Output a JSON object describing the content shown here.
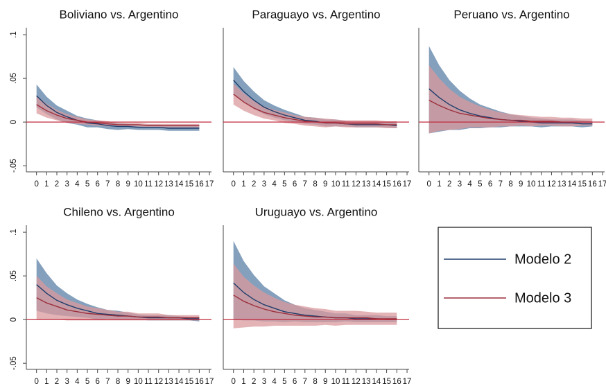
{
  "legend": [
    {
      "name": "Modelo 2",
      "color": "#1f3d6b",
      "band_color": "#6f8fb0"
    },
    {
      "name": "Modelo 3",
      "color": "#9b2f3b",
      "band_color": "#d99a9e"
    }
  ],
  "chart_data": [
    {
      "type": "line",
      "title": "Boliviano vs. Argentino",
      "x": [
        0,
        1,
        2,
        3,
        4,
        5,
        6,
        7,
        8,
        9,
        10,
        11,
        12,
        13,
        14,
        15,
        16
      ],
      "xlim": [
        -1,
        17.2
      ],
      "xticks": [
        0,
        1,
        2,
        3,
        4,
        5,
        6,
        7,
        8,
        9,
        10,
        11,
        12,
        13,
        14,
        15,
        16,
        17
      ],
      "ylim": [
        -0.057,
        0.108
      ],
      "yticks": [
        {
          "value": -0.05,
          "label": "-.05"
        },
        0,
        {
          "value": 0.05,
          "label": ".05"
        },
        {
          "value": 0.1,
          "label": ".1"
        }
      ],
      "refline": 0,
      "refline_color": "#c0283a",
      "series": [
        {
          "values": [
            0.03,
            0.019,
            0.011,
            0.006,
            0.002,
            -0.001,
            -0.002,
            -0.004,
            -0.005,
            -0.005,
            -0.006,
            -0.006,
            -0.006,
            -0.007,
            -0.007,
            -0.007,
            -0.007
          ],
          "lower": [
            0.017,
            0.009,
            0.003,
            -0.001,
            -0.003,
            -0.006,
            -0.006,
            -0.008,
            -0.009,
            -0.008,
            -0.009,
            -0.009,
            -0.009,
            -0.01,
            -0.01,
            -0.01,
            -0.01
          ],
          "upper": [
            0.043,
            0.029,
            0.019,
            0.013,
            0.007,
            0.004,
            0.002,
            0,
            -0.001,
            -0.002,
            -0.003,
            -0.003,
            -0.003,
            -0.004,
            -0.004,
            -0.004,
            -0.004
          ]
        },
        {
          "values": [
            0.02,
            0.013,
            0.008,
            0.004,
            0.002,
            0,
            -0.001,
            -0.002,
            -0.003,
            -0.003,
            -0.003,
            -0.004,
            -0.004,
            -0.004,
            -0.004,
            -0.004,
            -0.004
          ],
          "lower": [
            0.01,
            0.005,
            0.002,
            -0.001,
            -0.002,
            -0.003,
            -0.004,
            -0.005,
            -0.005,
            -0.005,
            -0.005,
            -0.006,
            -0.006,
            -0.006,
            -0.006,
            -0.006,
            -0.006
          ],
          "upper": [
            0.03,
            0.021,
            0.014,
            0.009,
            0.006,
            0.003,
            0.002,
            0.001,
            -0.001,
            -0.001,
            -0.001,
            -0.002,
            -0.002,
            -0.002,
            -0.002,
            -0.002,
            -0.002
          ]
        }
      ]
    },
    {
      "type": "line",
      "title": "Paraguayo vs. Argentino",
      "x": [
        0,
        1,
        2,
        3,
        4,
        5,
        6,
        7,
        8,
        9,
        10,
        11,
        12,
        13,
        14,
        15,
        16
      ],
      "xlim": [
        -1,
        17.2
      ],
      "xticks": [
        0,
        1,
        2,
        3,
        4,
        5,
        6,
        7,
        8,
        9,
        10,
        11,
        12,
        13,
        14,
        15,
        16,
        17
      ],
      "ylim": [
        -0.057,
        0.108
      ],
      "refline": 0,
      "refline_color": "#c0283a",
      "series": [
        {
          "values": [
            0.048,
            0.035,
            0.025,
            0.017,
            0.012,
            0.008,
            0.005,
            0.002,
            0.001,
            -0.001,
            -0.001,
            -0.002,
            -0.003,
            -0.003,
            -0.003,
            -0.003,
            -0.004
          ],
          "lower": [
            0.033,
            0.023,
            0.015,
            0.009,
            0.005,
            0.002,
            0,
            -0.002,
            -0.003,
            -0.005,
            -0.005,
            -0.005,
            -0.006,
            -0.006,
            -0.006,
            -0.006,
            -0.007
          ],
          "upper": [
            0.063,
            0.047,
            0.035,
            0.025,
            0.019,
            0.014,
            0.01,
            0.006,
            0.005,
            0.003,
            0.003,
            0.001,
            0,
            0,
            0,
            0,
            -0.001
          ]
        },
        {
          "values": [
            0.032,
            0.023,
            0.016,
            0.011,
            0.008,
            0.005,
            0.003,
            0.001,
            0,
            -0.001,
            -0.001,
            -0.002,
            -0.002,
            -0.002,
            -0.002,
            -0.003,
            -0.003
          ],
          "lower": [
            0.02,
            0.013,
            0.008,
            0.004,
            0.002,
            -0.001,
            -0.002,
            -0.004,
            -0.005,
            -0.006,
            -0.005,
            -0.006,
            -0.006,
            -0.006,
            -0.006,
            -0.007,
            -0.007
          ],
          "upper": [
            0.044,
            0.033,
            0.024,
            0.018,
            0.014,
            0.011,
            0.008,
            0.006,
            0.005,
            0.004,
            0.003,
            0.002,
            0.002,
            0.002,
            0.002,
            0.001,
            0.001
          ]
        }
      ]
    },
    {
      "type": "line",
      "title": "Peruano vs. Argentino",
      "x": [
        0,
        1,
        2,
        3,
        4,
        5,
        6,
        7,
        8,
        9,
        10,
        11,
        12,
        13,
        14,
        15,
        16
      ],
      "xlim": [
        -1,
        17.2
      ],
      "xticks": [
        0,
        1,
        2,
        3,
        4,
        5,
        6,
        7,
        8,
        9,
        10,
        11,
        12,
        13,
        14,
        15,
        16,
        17
      ],
      "ylim": [
        -0.057,
        0.108
      ],
      "refline": 0,
      "refline_color": "#c0283a",
      "series": [
        {
          "values": [
            0.038,
            0.028,
            0.02,
            0.014,
            0.01,
            0.007,
            0.005,
            0.003,
            0.002,
            0.001,
            0,
            -0.001,
            -0.001,
            -0.001,
            -0.001,
            -0.002,
            -0.002
          ],
          "lower": [
            -0.013,
            -0.011,
            -0.009,
            -0.009,
            -0.007,
            -0.007,
            -0.006,
            -0.006,
            -0.005,
            -0.005,
            -0.005,
            -0.006,
            -0.005,
            -0.005,
            -0.005,
            -0.006,
            -0.005
          ],
          "upper": [
            0.087,
            0.065,
            0.048,
            0.036,
            0.027,
            0.02,
            0.016,
            0.012,
            0.009,
            0.007,
            0.005,
            0.004,
            0.003,
            0.003,
            0.003,
            0.002,
            0.001
          ]
        },
        {
          "values": [
            0.025,
            0.019,
            0.014,
            0.01,
            0.008,
            0.006,
            0.004,
            0.003,
            0.002,
            0.002,
            0.001,
            0.001,
            0.001,
            0,
            0,
            0,
            0
          ],
          "lower": [
            -0.013,
            -0.01,
            -0.009,
            -0.008,
            -0.006,
            -0.006,
            -0.006,
            -0.005,
            -0.005,
            -0.004,
            -0.005,
            -0.004,
            -0.004,
            -0.005,
            -0.005,
            -0.004,
            -0.004
          ],
          "upper": [
            0.065,
            0.05,
            0.038,
            0.029,
            0.023,
            0.018,
            0.014,
            0.011,
            0.009,
            0.008,
            0.007,
            0.006,
            0.006,
            0.005,
            0.005,
            0.004,
            0.004
          ]
        }
      ]
    },
    {
      "type": "line",
      "title": "Chileno vs. Argentino",
      "x": [
        0,
        1,
        2,
        3,
        4,
        5,
        6,
        7,
        8,
        9,
        10,
        11,
        12,
        13,
        14,
        15,
        16
      ],
      "xlim": [
        -1,
        17.2
      ],
      "xticks": [
        0,
        1,
        2,
        3,
        4,
        5,
        6,
        7,
        8,
        9,
        10,
        11,
        12,
        13,
        14,
        15,
        16,
        17
      ],
      "ylim": [
        -0.057,
        0.108
      ],
      "yticks": [
        {
          "value": -0.05,
          "label": "-.05"
        },
        0,
        {
          "value": 0.05,
          "label": ".05"
        },
        {
          "value": 0.1,
          "label": ".1"
        }
      ],
      "refline": 0,
      "refline_color": "#c0283a",
      "series": [
        {
          "values": [
            0.04,
            0.03,
            0.022,
            0.017,
            0.013,
            0.01,
            0.007,
            0.006,
            0.005,
            0.004,
            0.003,
            0.002,
            0.002,
            0.002,
            0.002,
            0.001,
            0.001
          ],
          "lower": [
            0.01,
            0.007,
            0.005,
            0.004,
            0.003,
            0.002,
            0,
            0.001,
            0,
            0,
            0,
            -0.001,
            -0.001,
            -0.001,
            -0.001,
            -0.001,
            -0.002
          ],
          "upper": [
            0.07,
            0.053,
            0.039,
            0.03,
            0.023,
            0.018,
            0.014,
            0.011,
            0.01,
            0.008,
            0.006,
            0.005,
            0.005,
            0.005,
            0.004,
            0.003,
            0.003
          ]
        },
        {
          "values": [
            0.025,
            0.019,
            0.015,
            0.011,
            0.009,
            0.007,
            0.006,
            0.005,
            0.004,
            0.004,
            0.003,
            0.003,
            0.003,
            0.002,
            0.002,
            0.002,
            0.002
          ],
          "lower": [
            0,
            0,
            0,
            -0.001,
            -0.001,
            -0.001,
            -0.001,
            -0.001,
            -0.001,
            -0.001,
            -0.001,
            -0.001,
            -0.001,
            -0.001,
            -0.001,
            -0.001,
            -0.001
          ],
          "upper": [
            0.05,
            0.038,
            0.03,
            0.023,
            0.019,
            0.015,
            0.013,
            0.011,
            0.009,
            0.009,
            0.007,
            0.007,
            0.007,
            0.005,
            0.005,
            0.005,
            0.005
          ]
        }
      ]
    },
    {
      "type": "line",
      "title": "Uruguayo vs. Argentino",
      "x": [
        0,
        1,
        2,
        3,
        4,
        5,
        6,
        7,
        8,
        9,
        10,
        11,
        12,
        13,
        14,
        15,
        16
      ],
      "xlim": [
        -1,
        17.2
      ],
      "xticks": [
        0,
        1,
        2,
        3,
        4,
        5,
        6,
        7,
        8,
        9,
        10,
        11,
        12,
        13,
        14,
        15,
        16,
        17
      ],
      "ylim": [
        -0.057,
        0.108
      ],
      "refline": 0,
      "refline_color": "#c0283a",
      "series": [
        {
          "values": [
            0.042,
            0.031,
            0.023,
            0.017,
            0.013,
            0.009,
            0.007,
            0.005,
            0.004,
            0.003,
            0.002,
            0.002,
            0.001,
            0.001,
            0.001,
            0,
            0
          ],
          "lower": [
            0,
            -0.001,
            -0.001,
            -0.002,
            -0.002,
            -0.003,
            -0.002,
            -0.003,
            -0.003,
            -0.003,
            -0.003,
            -0.002,
            -0.003,
            -0.003,
            -0.003,
            -0.003,
            -0.003
          ],
          "upper": [
            0.09,
            0.067,
            0.051,
            0.038,
            0.03,
            0.022,
            0.017,
            0.013,
            0.011,
            0.009,
            0.007,
            0.007,
            0.005,
            0.005,
            0.005,
            0.004,
            0.004
          ]
        },
        {
          "values": [
            0.028,
            0.021,
            0.016,
            0.012,
            0.009,
            0.007,
            0.005,
            0.004,
            0.003,
            0.003,
            0.002,
            0.002,
            0.002,
            0.002,
            0.001,
            0.001,
            0.001
          ],
          "lower": [
            -0.01,
            -0.009,
            -0.008,
            -0.008,
            -0.007,
            -0.007,
            -0.007,
            -0.007,
            -0.007,
            -0.006,
            -0.007,
            -0.006,
            -0.006,
            -0.006,
            -0.006,
            -0.006,
            -0.006
          ],
          "upper": [
            0.064,
            0.049,
            0.039,
            0.031,
            0.025,
            0.02,
            0.017,
            0.015,
            0.013,
            0.012,
            0.01,
            0.01,
            0.01,
            0.009,
            0.008,
            0.008,
            0.008
          ]
        }
      ]
    }
  ]
}
